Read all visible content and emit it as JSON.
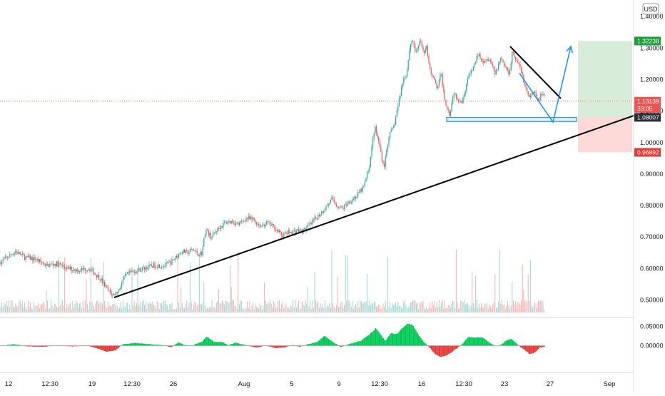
{
  "chart_data": {
    "type": "candlestick",
    "currency": "USD",
    "price_axis": {
      "ylim": [
        0.44,
        1.43
      ],
      "ticks": [
        {
          "value": 1.4,
          "label": "1.40000"
        },
        {
          "value": 1.3,
          "label": "1.30000"
        },
        {
          "value": 1.2,
          "label": "1.20000"
        },
        {
          "value": 1.1,
          "label": "1.10000"
        },
        {
          "value": 1.0,
          "label": "1.00000"
        },
        {
          "value": 0.9,
          "label": "0.90000"
        },
        {
          "value": 0.8,
          "label": "0.80000"
        },
        {
          "value": 0.7,
          "label": "0.70000"
        },
        {
          "value": 0.6,
          "label": "0.60000"
        },
        {
          "value": 0.5,
          "label": "0.50000"
        }
      ]
    },
    "oscillator_axis": {
      "ylim": [
        -0.07,
        0.07
      ],
      "ticks": [
        {
          "value": 0.05,
          "label": "0.05000"
        },
        {
          "value": 0.0,
          "label": "0.00000"
        }
      ]
    },
    "price_labels": [
      {
        "value": 1.32238,
        "label": "1.32238",
        "color": "#1b9e3a"
      },
      {
        "value": 1.13139,
        "label": "1.13139",
        "sublabel": "33:05",
        "color": "#ef5350"
      },
      {
        "value": 1.08007,
        "label": "1.08007",
        "color": "#2a2e39"
      },
      {
        "value": 0.96892,
        "label": "0.96892",
        "color": "#e53935"
      }
    ],
    "time_ticks": [
      "12",
      "12:30",
      "19",
      "12:30",
      "26",
      "Aug",
      "5",
      "9",
      "12:30",
      "16",
      "12:30",
      "23",
      "27",
      "Sep"
    ],
    "price_path": [
      [
        0,
        0.62
      ],
      [
        10,
        0.635
      ],
      [
        22,
        0.655
      ],
      [
        35,
        0.635
      ],
      [
        50,
        0.63
      ],
      [
        65,
        0.61
      ],
      [
        80,
        0.615
      ],
      [
        95,
        0.6
      ],
      [
        110,
        0.595
      ],
      [
        125,
        0.6
      ],
      [
        140,
        0.57
      ],
      [
        150,
        0.535
      ],
      [
        158,
        0.515
      ],
      [
        166,
        0.53
      ],
      [
        175,
        0.575
      ],
      [
        185,
        0.59
      ],
      [
        200,
        0.6
      ],
      [
        215,
        0.61
      ],
      [
        230,
        0.61
      ],
      [
        240,
        0.62
      ],
      [
        248,
        0.64
      ],
      [
        255,
        0.655
      ],
      [
        262,
        0.65
      ],
      [
        270,
        0.66
      ],
      [
        278,
        0.645
      ],
      [
        283,
        0.65
      ],
      [
        288,
        0.725
      ],
      [
        296,
        0.7
      ],
      [
        305,
        0.725
      ],
      [
        315,
        0.745
      ],
      [
        325,
        0.75
      ],
      [
        335,
        0.74
      ],
      [
        345,
        0.76
      ],
      [
        355,
        0.755
      ],
      [
        365,
        0.735
      ],
      [
        375,
        0.745
      ],
      [
        385,
        0.73
      ],
      [
        395,
        0.705
      ],
      [
        405,
        0.715
      ],
      [
        415,
        0.72
      ],
      [
        425,
        0.72
      ],
      [
        435,
        0.74
      ],
      [
        445,
        0.765
      ],
      [
        455,
        0.79
      ],
      [
        465,
        0.82
      ],
      [
        472,
        0.8
      ],
      [
        480,
        0.79
      ],
      [
        490,
        0.815
      ],
      [
        500,
        0.83
      ],
      [
        510,
        0.86
      ],
      [
        518,
        0.93
      ],
      [
        525,
        1.05
      ],
      [
        532,
        0.99
      ],
      [
        538,
        0.92
      ],
      [
        545,
        1.02
      ],
      [
        552,
        1.05
      ],
      [
        558,
        1.12
      ],
      [
        565,
        1.2
      ],
      [
        570,
        1.22
      ],
      [
        574,
        1.3
      ],
      [
        578,
        1.33
      ],
      [
        583,
        1.28
      ],
      [
        588,
        1.32
      ],
      [
        594,
        1.29
      ],
      [
        598,
        1.3
      ],
      [
        603,
        1.23
      ],
      [
        608,
        1.2
      ],
      [
        613,
        1.17
      ],
      [
        618,
        1.22
      ],
      [
        624,
        1.13
      ],
      [
        630,
        1.09
      ],
      [
        636,
        1.16
      ],
      [
        642,
        1.14
      ],
      [
        648,
        1.13
      ],
      [
        655,
        1.2
      ],
      [
        662,
        1.23
      ],
      [
        670,
        1.28
      ],
      [
        678,
        1.26
      ],
      [
        686,
        1.27
      ],
      [
        694,
        1.22
      ],
      [
        702,
        1.27
      ],
      [
        708,
        1.24
      ],
      [
        714,
        1.22
      ],
      [
        718,
        1.29
      ],
      [
        724,
        1.26
      ],
      [
        730,
        1.23
      ],
      [
        736,
        1.18
      ],
      [
        742,
        1.14
      ],
      [
        748,
        1.16
      ],
      [
        754,
        1.13
      ],
      [
        760,
        1.16
      ],
      [
        764,
        1.13
      ]
    ],
    "annotations": {
      "trendline_support": {
        "from": [
          160,
          0.508
        ],
        "to": [
          890,
          1.087
        ]
      },
      "trendline_resistance": {
        "from": [
          715,
          1.305
        ],
        "to": [
          786,
          1.14
        ]
      },
      "support_zone": {
        "x": [
          626,
          808
        ],
        "y": [
          1.067,
          1.08
        ]
      },
      "projection_path": [
        [
          728,
          1.22
        ],
        [
          775,
          1.065
        ],
        [
          800,
          1.305
        ]
      ],
      "take_profit_zone": {
        "x": [
          810,
          886
        ],
        "y": [
          1.08007,
          1.32238
        ]
      },
      "stop_loss_zone": {
        "x": [
          810,
          886
        ],
        "y": [
          0.96892,
          1.08007
        ]
      }
    },
    "oscillator_path": [
      [
        0,
        -0.001
      ],
      [
        20,
        0.004
      ],
      [
        40,
        -0.002
      ],
      [
        60,
        -0.003
      ],
      [
        80,
        0.001
      ],
      [
        100,
        -0.002
      ],
      [
        120,
        0.001
      ],
      [
        135,
        -0.006
      ],
      [
        150,
        -0.016
      ],
      [
        162,
        -0.012
      ],
      [
        172,
        0.004
      ],
      [
        190,
        0.007
      ],
      [
        210,
        0.004
      ],
      [
        230,
        0.001
      ],
      [
        240,
        -0.004
      ],
      [
        250,
        0.009
      ],
      [
        258,
        0.002
      ],
      [
        268,
        0.0
      ],
      [
        282,
        0.009
      ],
      [
        290,
        0.024
      ],
      [
        300,
        0.01
      ],
      [
        312,
        0.01
      ],
      [
        320,
        0.001
      ],
      [
        330,
        0.008
      ],
      [
        345,
        0.001
      ],
      [
        360,
        -0.005
      ],
      [
        372,
        0.001
      ],
      [
        385,
        -0.006
      ],
      [
        398,
        -0.005
      ],
      [
        410,
        0.002
      ],
      [
        420,
        -0.003
      ],
      [
        432,
        0.004
      ],
      [
        445,
        0.01
      ],
      [
        455,
        0.026
      ],
      [
        465,
        0.012
      ],
      [
        478,
        -0.004
      ],
      [
        490,
        0.005
      ],
      [
        505,
        0.012
      ],
      [
        518,
        0.03
      ],
      [
        527,
        0.046
      ],
      [
        533,
        0.03
      ],
      [
        540,
        0.012
      ],
      [
        548,
        0.033
      ],
      [
        556,
        0.03
      ],
      [
        563,
        0.045
      ],
      [
        571,
        0.057
      ],
      [
        578,
        0.055
      ],
      [
        586,
        0.03
      ],
      [
        594,
        0.01
      ],
      [
        602,
        -0.005
      ],
      [
        610,
        -0.022
      ],
      [
        618,
        -0.03
      ],
      [
        624,
        -0.027
      ],
      [
        632,
        -0.018
      ],
      [
        640,
        -0.007
      ],
      [
        648,
        0.004
      ],
      [
        656,
        0.023
      ],
      [
        666,
        0.021
      ],
      [
        676,
        0.022
      ],
      [
        686,
        0.008
      ],
      [
        694,
        0.0
      ],
      [
        702,
        0.002
      ],
      [
        710,
        0.014
      ],
      [
        716,
        0.018
      ],
      [
        722,
        0.01
      ],
      [
        728,
        -0.002
      ],
      [
        735,
        -0.01
      ],
      [
        742,
        -0.022
      ],
      [
        750,
        -0.018
      ],
      [
        756,
        -0.005
      ],
      [
        764,
        -0.002
      ]
    ]
  }
}
